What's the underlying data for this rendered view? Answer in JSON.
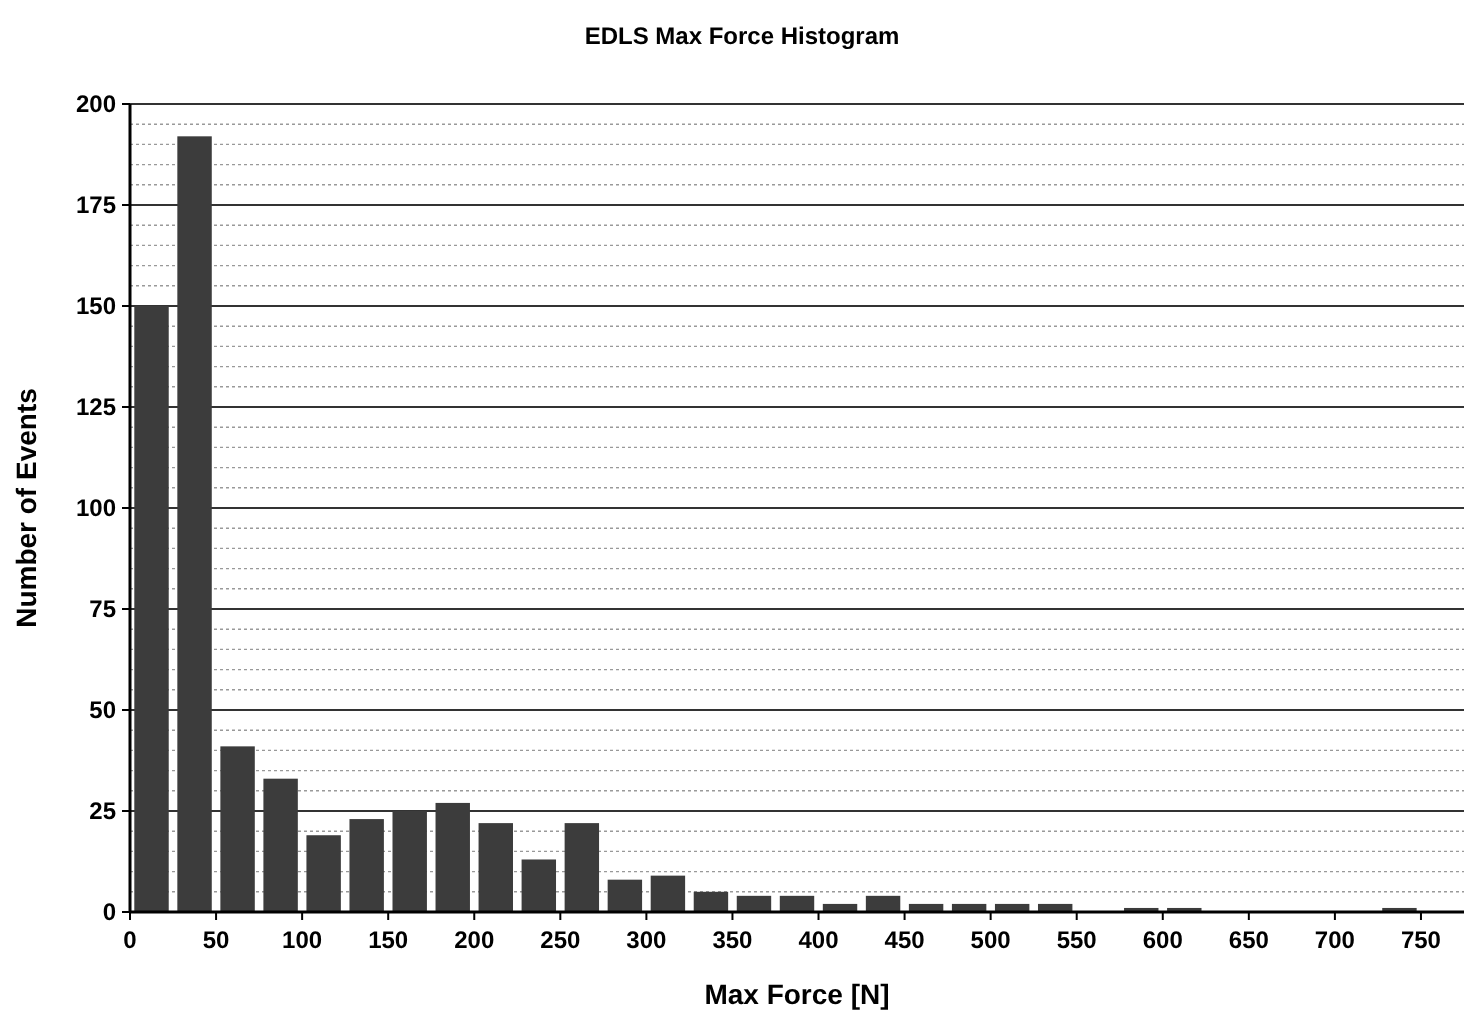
{
  "chart_data": {
    "type": "histogram",
    "title": "EDLS Max Force Histogram",
    "xlabel": "Max Force [N]",
    "ylabel": "Number of Events",
    "bins": [
      0,
      25,
      50,
      75,
      100,
      125,
      150,
      175,
      200,
      225,
      250,
      275,
      300,
      325,
      350,
      375,
      400,
      425,
      450,
      475,
      500,
      525,
      550,
      575,
      600,
      625,
      650,
      675,
      700,
      725,
      750,
      775
    ],
    "values": [
      150,
      192,
      41,
      33,
      19,
      23,
      25,
      27,
      22,
      13,
      22,
      8,
      9,
      5,
      4,
      4,
      2,
      4,
      2,
      2,
      2,
      2,
      0,
      1,
      1,
      0,
      0,
      0,
      0,
      1,
      0
    ],
    "color": "#3c3c3c",
    "xlim": [
      0,
      775
    ],
    "xticks": [
      0,
      50,
      100,
      150,
      200,
      250,
      300,
      350,
      400,
      450,
      500,
      550,
      600,
      650,
      700,
      750
    ],
    "ylim": [
      0,
      200
    ],
    "yticks": [
      0,
      {
        "value": 5,
        "label": null
      },
      {
        "value": 10,
        "label": null
      },
      {
        "value": 15,
        "label": null
      },
      {
        "value": 20,
        "label": null
      },
      25,
      {
        "value": 30,
        "label": null
      },
      {
        "value": 35,
        "label": null
      },
      {
        "value": 40,
        "label": null
      },
      {
        "value": 45,
        "label": null
      },
      50,
      {
        "value": 55,
        "label": null
      },
      {
        "value": 60,
        "label": null
      },
      {
        "value": 65,
        "label": null
      },
      {
        "value": 70,
        "label": null
      },
      75,
      {
        "value": 80,
        "label": null
      },
      {
        "value": 85,
        "label": null
      },
      {
        "value": 90,
        "label": null
      },
      {
        "value": 95,
        "label": null
      },
      100,
      {
        "value": 105,
        "label": null
      },
      {
        "value": 110,
        "label": null
      },
      {
        "value": 115,
        "label": null
      },
      {
        "value": 120,
        "label": null
      },
      125,
      {
        "value": 130,
        "label": null
      },
      {
        "value": 135,
        "label": null
      },
      {
        "value": 140,
        "label": null
      },
      {
        "value": 145,
        "label": null
      },
      150,
      {
        "value": 155,
        "label": null
      },
      {
        "value": 160,
        "label": null
      },
      {
        "value": 165,
        "label": null
      },
      {
        "value": 170,
        "label": null
      },
      175,
      {
        "value": 180,
        "label": null
      },
      {
        "value": 185,
        "label": null
      },
      {
        "value": 190,
        "label": null
      },
      {
        "value": 195,
        "label": null
      },
      200
    ],
    "grid": "y"
  }
}
